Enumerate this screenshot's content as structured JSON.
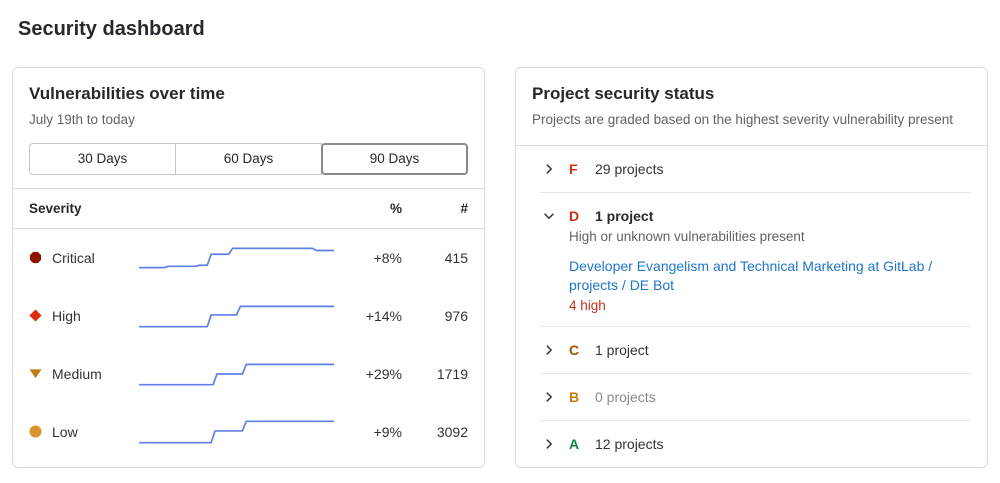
{
  "page": {
    "title": "Security dashboard"
  },
  "vuln_panel": {
    "title": "Vulnerabilities over time",
    "subtitle": "July 19th to today",
    "range_buttons": [
      {
        "label": "30 Days",
        "selected": "false"
      },
      {
        "label": "60 Days",
        "selected": "false"
      },
      {
        "label": "90 Days",
        "selected": "true"
      }
    ],
    "table": {
      "headers": {
        "severity": "Severity",
        "percent": "%",
        "count": "#"
      },
      "rows": [
        {
          "severity": "Critical",
          "icon": "severity-critical-icon",
          "icon_color": "#8d1300",
          "percent": "+8%",
          "count": "415"
        },
        {
          "severity": "High",
          "icon": "severity-high-icon",
          "icon_color": "#dd2b0e",
          "percent": "+14%",
          "count": "976"
        },
        {
          "severity": "Medium",
          "icon": "severity-medium-icon",
          "icon_color": "#c17d10",
          "percent": "+29%",
          "count": "1719"
        },
        {
          "severity": "Low",
          "icon": "severity-low-icon",
          "icon_color": "#d99530",
          "percent": "+9%",
          "count": "3092"
        }
      ]
    }
  },
  "status_panel": {
    "title": "Project security status",
    "subtitle": "Projects are graded based on the highest severity vulnerability present",
    "grades": [
      {
        "letter": "F",
        "color": "#dd2b0e",
        "count_label": "29 projects"
      },
      {
        "letter": "D",
        "color": "#c4301d",
        "count_label": "1 project",
        "description": "High or unknown vulnerabilities present",
        "projects": [
          {
            "name": "Developer Evangelism and Technical Marketing at GitLab / projects / DE Bot",
            "vulnerabilities": "4 high",
            "vulnerabilities_color": "#c4301d"
          }
        ]
      },
      {
        "letter": "C",
        "color": "#aa4e00",
        "count_label": "1 project"
      },
      {
        "letter": "B",
        "color": "#c17d10",
        "count_label": "0 projects"
      },
      {
        "letter": "A",
        "color": "#108548",
        "count_label": "12 projects"
      }
    ]
  },
  "chart_data": {
    "type": "line",
    "title": "Vulnerabilities over time",
    "x_range_label": "July 19th to today",
    "selected_range": "90 Days",
    "line_color": "#6080e8",
    "series": [
      {
        "name": "Critical",
        "trend_percent": "+8%",
        "current_count": 415,
        "points": [
          [
            0,
            24
          ],
          [
            13,
            24
          ],
          [
            15,
            22.8
          ],
          [
            29,
            22.8
          ],
          [
            31,
            21.8
          ],
          [
            35,
            21.8
          ],
          [
            37,
            11.5
          ],
          [
            46,
            11.5
          ],
          [
            48,
            6
          ],
          [
            89,
            6
          ],
          [
            91,
            8
          ],
          [
            100,
            8
          ]
        ]
      },
      {
        "name": "High",
        "trend_percent": "+14%",
        "current_count": 976,
        "points": [
          [
            0,
            25
          ],
          [
            35,
            25
          ],
          [
            37,
            14
          ],
          [
            50,
            14
          ],
          [
            52,
            6
          ],
          [
            100,
            6
          ]
        ]
      },
      {
        "name": "Medium",
        "trend_percent": "+29%",
        "current_count": 1719,
        "points": [
          [
            0,
            25
          ],
          [
            38,
            25
          ],
          [
            40,
            15
          ],
          [
            53,
            15
          ],
          [
            55,
            6
          ],
          [
            100,
            6
          ]
        ]
      },
      {
        "name": "Low",
        "trend_percent": "+9%",
        "current_count": 3092,
        "points": [
          [
            0,
            25
          ],
          [
            37,
            25
          ],
          [
            39,
            14
          ],
          [
            53,
            14
          ],
          [
            55,
            5
          ],
          [
            100,
            5
          ]
        ]
      }
    ]
  },
  "colors": {
    "link_blue": "#1f75cb",
    "sparkline_blue": "#6080e8",
    "panel_border": "#dcdcde",
    "text_primary": "#28272d",
    "text_secondary": "#626168"
  }
}
